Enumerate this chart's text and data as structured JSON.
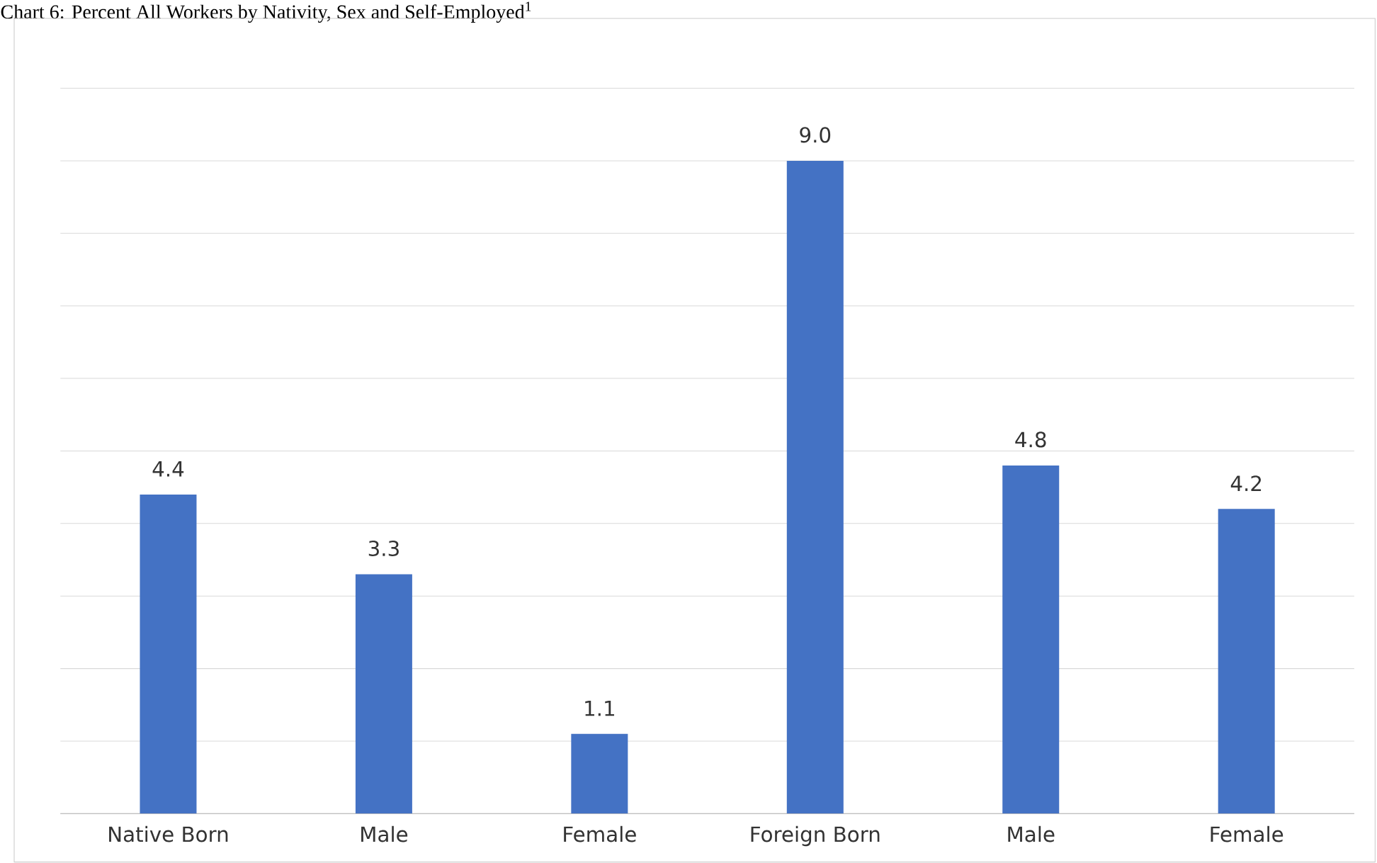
{
  "chart_data": {
    "type": "bar",
    "title": "Chart 6: Percent All Workers by Nativity, Sex and Self-Employed$^{1}$",
    "categories": [
      "Native Born",
      "Male",
      "Female",
      "Foreign Born",
      "Male",
      "Female"
    ],
    "values": [
      4.4,
      3.3,
      1.1,
      9.0,
      4.8,
      4.2
    ],
    "color": "#4472c4",
    "value_labels": [
      "4.4",
      "3.3",
      "1.1",
      "9.0",
      "4.8",
      "4.2"
    ],
    "grid": "y",
    "tick_labels": "x"
  }
}
